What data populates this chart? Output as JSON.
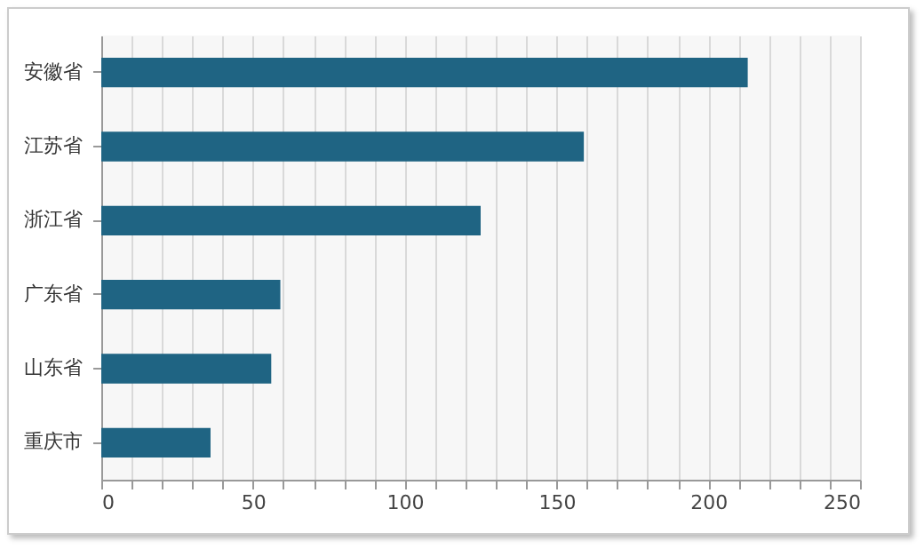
{
  "chart_data": {
    "type": "bar",
    "orientation": "horizontal",
    "categories": [
      "安徽省",
      "江苏省",
      "浙江省",
      "广东省",
      "山东省",
      "重庆市"
    ],
    "values": [
      213,
      159,
      125,
      59,
      56,
      36
    ],
    "color": "#1f6483",
    "xlim": [
      0,
      250
    ],
    "xticks": [
      0,
      {
        "value": 10,
        "label": null
      },
      {
        "value": 20,
        "label": null
      },
      {
        "value": 30,
        "label": null
      },
      {
        "value": 40,
        "label": null
      },
      50,
      {
        "value": 60,
        "label": null
      },
      {
        "value": 70,
        "label": null
      },
      {
        "value": 80,
        "label": null
      },
      {
        "value": 90,
        "label": null
      },
      100,
      {
        "value": 110,
        "label": null
      },
      {
        "value": 120,
        "label": null
      },
      {
        "value": 130,
        "label": null
      },
      {
        "value": 140,
        "label": null
      },
      150,
      {
        "value": 160,
        "label": null
      },
      {
        "value": 170,
        "label": null
      },
      {
        "value": 180,
        "label": null
      },
      {
        "value": 190,
        "label": null
      },
      200,
      {
        "value": 210,
        "label": null
      },
      {
        "value": 220,
        "label": null
      },
      {
        "value": 230,
        "label": null
      },
      {
        "value": 240,
        "label": null
      },
      250
    ],
    "grid": "x"
  }
}
